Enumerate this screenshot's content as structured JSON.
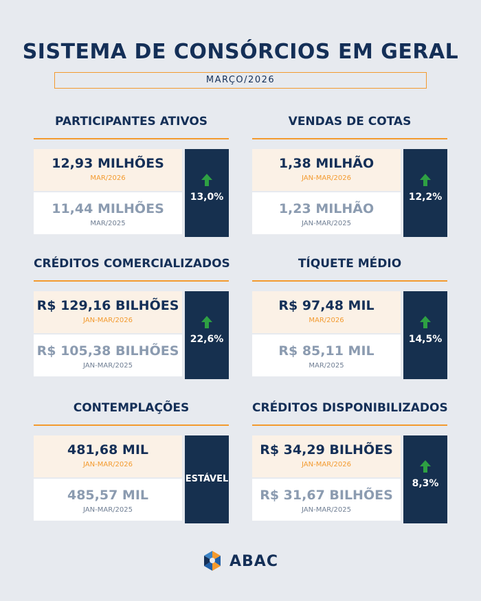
{
  "header": {
    "title": "SISTEMA DE CONSÓRCIOS EM GERAL",
    "subtitle": "MARÇO/2026"
  },
  "blocks": [
    {
      "title": "PARTICIPANTES ATIVOS",
      "current": {
        "value": "12,93 MILHÕES",
        "period": "MAR/2026"
      },
      "previous": {
        "value": "11,44 MILHÕES",
        "period": "MAR/2025"
      },
      "change": "13,0%"
    },
    {
      "title": "VENDAS DE COTAS",
      "current": {
        "value": "1,38 MILHÃO",
        "period": "JAN-MAR/2026"
      },
      "previous": {
        "value": "1,23 MILHÃO",
        "period": "JAN-MAR/2025"
      },
      "change": "12,2%"
    },
    {
      "title": "CRÉDITOS COMERCIALIZADOS",
      "current": {
        "value": "R$ 129,16 BILHÕES",
        "period": "JAN-MAR/2026"
      },
      "previous": {
        "value": "R$ 105,38 BILHÕES",
        "period": "JAN-MAR/2025"
      },
      "change": "22,6%"
    },
    {
      "title": "TÍQUETE MÉDIO",
      "current": {
        "value": "R$ 97,48 MIL",
        "period": "MAR/2026"
      },
      "previous": {
        "value": "R$ 85,11 MIL",
        "period": "MAR/2025"
      },
      "change": "14,5%"
    },
    {
      "title": "CONTEMPLAÇÕES",
      "current": {
        "value": "481,68 MIL",
        "period": "JAN-MAR/2026"
      },
      "previous": {
        "value": "485,57 MIL",
        "period": "JAN-MAR/2025"
      },
      "change": "ESTÁVEL"
    },
    {
      "title": "CRÉDITOS DISPONIBILIZADOS",
      "current": {
        "value": "R$ 34,29 BILHÕES",
        "period": "JAN-MAR/2026"
      },
      "previous": {
        "value": "R$ 31,67 BILHÕES",
        "period": "JAN-MAR/2025"
      },
      "change": "8,3%"
    }
  ],
  "footer": {
    "logo_text": "ABAC",
    "logo_icon": "abac-logo-icon"
  },
  "colors": {
    "navy": "#142f57",
    "orange": "#f39a2e",
    "green_arrow": "#2ea043",
    "background": "#e7eaef"
  }
}
